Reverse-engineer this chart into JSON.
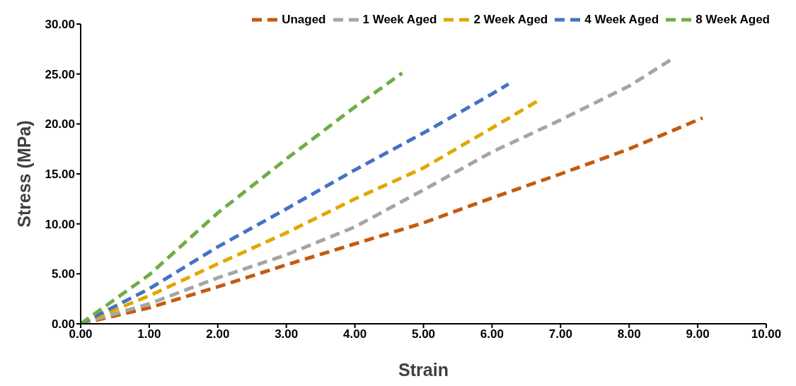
{
  "chart_data": {
    "type": "line",
    "xlabel": "Strain",
    "ylabel": "Stress (MPa)",
    "xlim": [
      0,
      10
    ],
    "ylim": [
      0,
      30
    ],
    "xticks": [
      {
        "value": 0,
        "label": "0.00"
      },
      {
        "value": 1,
        "label": "1.00"
      },
      {
        "value": 2,
        "label": "2.00"
      },
      {
        "value": 3,
        "label": "3.00"
      },
      {
        "value": 4,
        "label": "4.00"
      },
      {
        "value": 5,
        "label": "5.00"
      },
      {
        "value": 6,
        "label": "6.00"
      },
      {
        "value": 7,
        "label": "7.00"
      },
      {
        "value": 8,
        "label": "8.00"
      },
      {
        "value": 9,
        "label": "9.00"
      },
      {
        "value": 10,
        "label": "10.00"
      }
    ],
    "yticks": [
      {
        "value": 0,
        "label": "0.00"
      },
      {
        "value": 5,
        "label": "5.00"
      },
      {
        "value": 10,
        "label": "10.00"
      },
      {
        "value": 15,
        "label": "15.00"
      },
      {
        "value": 20,
        "label": "20.00"
      },
      {
        "value": 25,
        "label": "25.00"
      },
      {
        "value": 30,
        "label": "30.00"
      }
    ],
    "grid": false,
    "legend": "top",
    "line_style": "dashed",
    "marker": "none",
    "series": [
      {
        "name": "Unaged",
        "color": "#c55a11",
        "x": [
          0,
          1,
          2,
          3,
          4,
          5,
          6,
          7,
          8,
          9.07
        ],
        "values": [
          0,
          1.6,
          3.7,
          5.9,
          8.0,
          10.1,
          12.6,
          15.0,
          17.5,
          20.6
        ]
      },
      {
        "name": "1 Week Aged",
        "color": "#a5a5a5",
        "x": [
          0,
          1,
          2,
          3,
          4,
          5,
          6,
          7,
          8,
          8.65
        ],
        "values": [
          0,
          2.0,
          4.6,
          6.9,
          9.7,
          13.4,
          17.2,
          20.4,
          23.8,
          26.6
        ]
      },
      {
        "name": "2 Week Aged",
        "color": "#e0a800",
        "x": [
          0,
          1,
          2,
          3,
          4,
          5,
          6,
          6.69
        ],
        "values": [
          0,
          2.8,
          6.0,
          9.1,
          12.5,
          15.6,
          19.6,
          22.4
        ]
      },
      {
        "name": "4 Week Aged",
        "color": "#4472c4",
        "x": [
          0,
          1,
          2,
          3,
          4,
          5,
          6,
          6.24
        ],
        "values": [
          0,
          3.5,
          7.7,
          11.5,
          15.4,
          19.1,
          23.0,
          24.0
        ]
      },
      {
        "name": "8 Week Aged",
        "color": "#70ad47",
        "x": [
          0,
          1,
          2,
          3,
          4,
          4.69
        ],
        "values": [
          0,
          4.9,
          11.1,
          16.5,
          21.7,
          25.1
        ]
      }
    ]
  }
}
